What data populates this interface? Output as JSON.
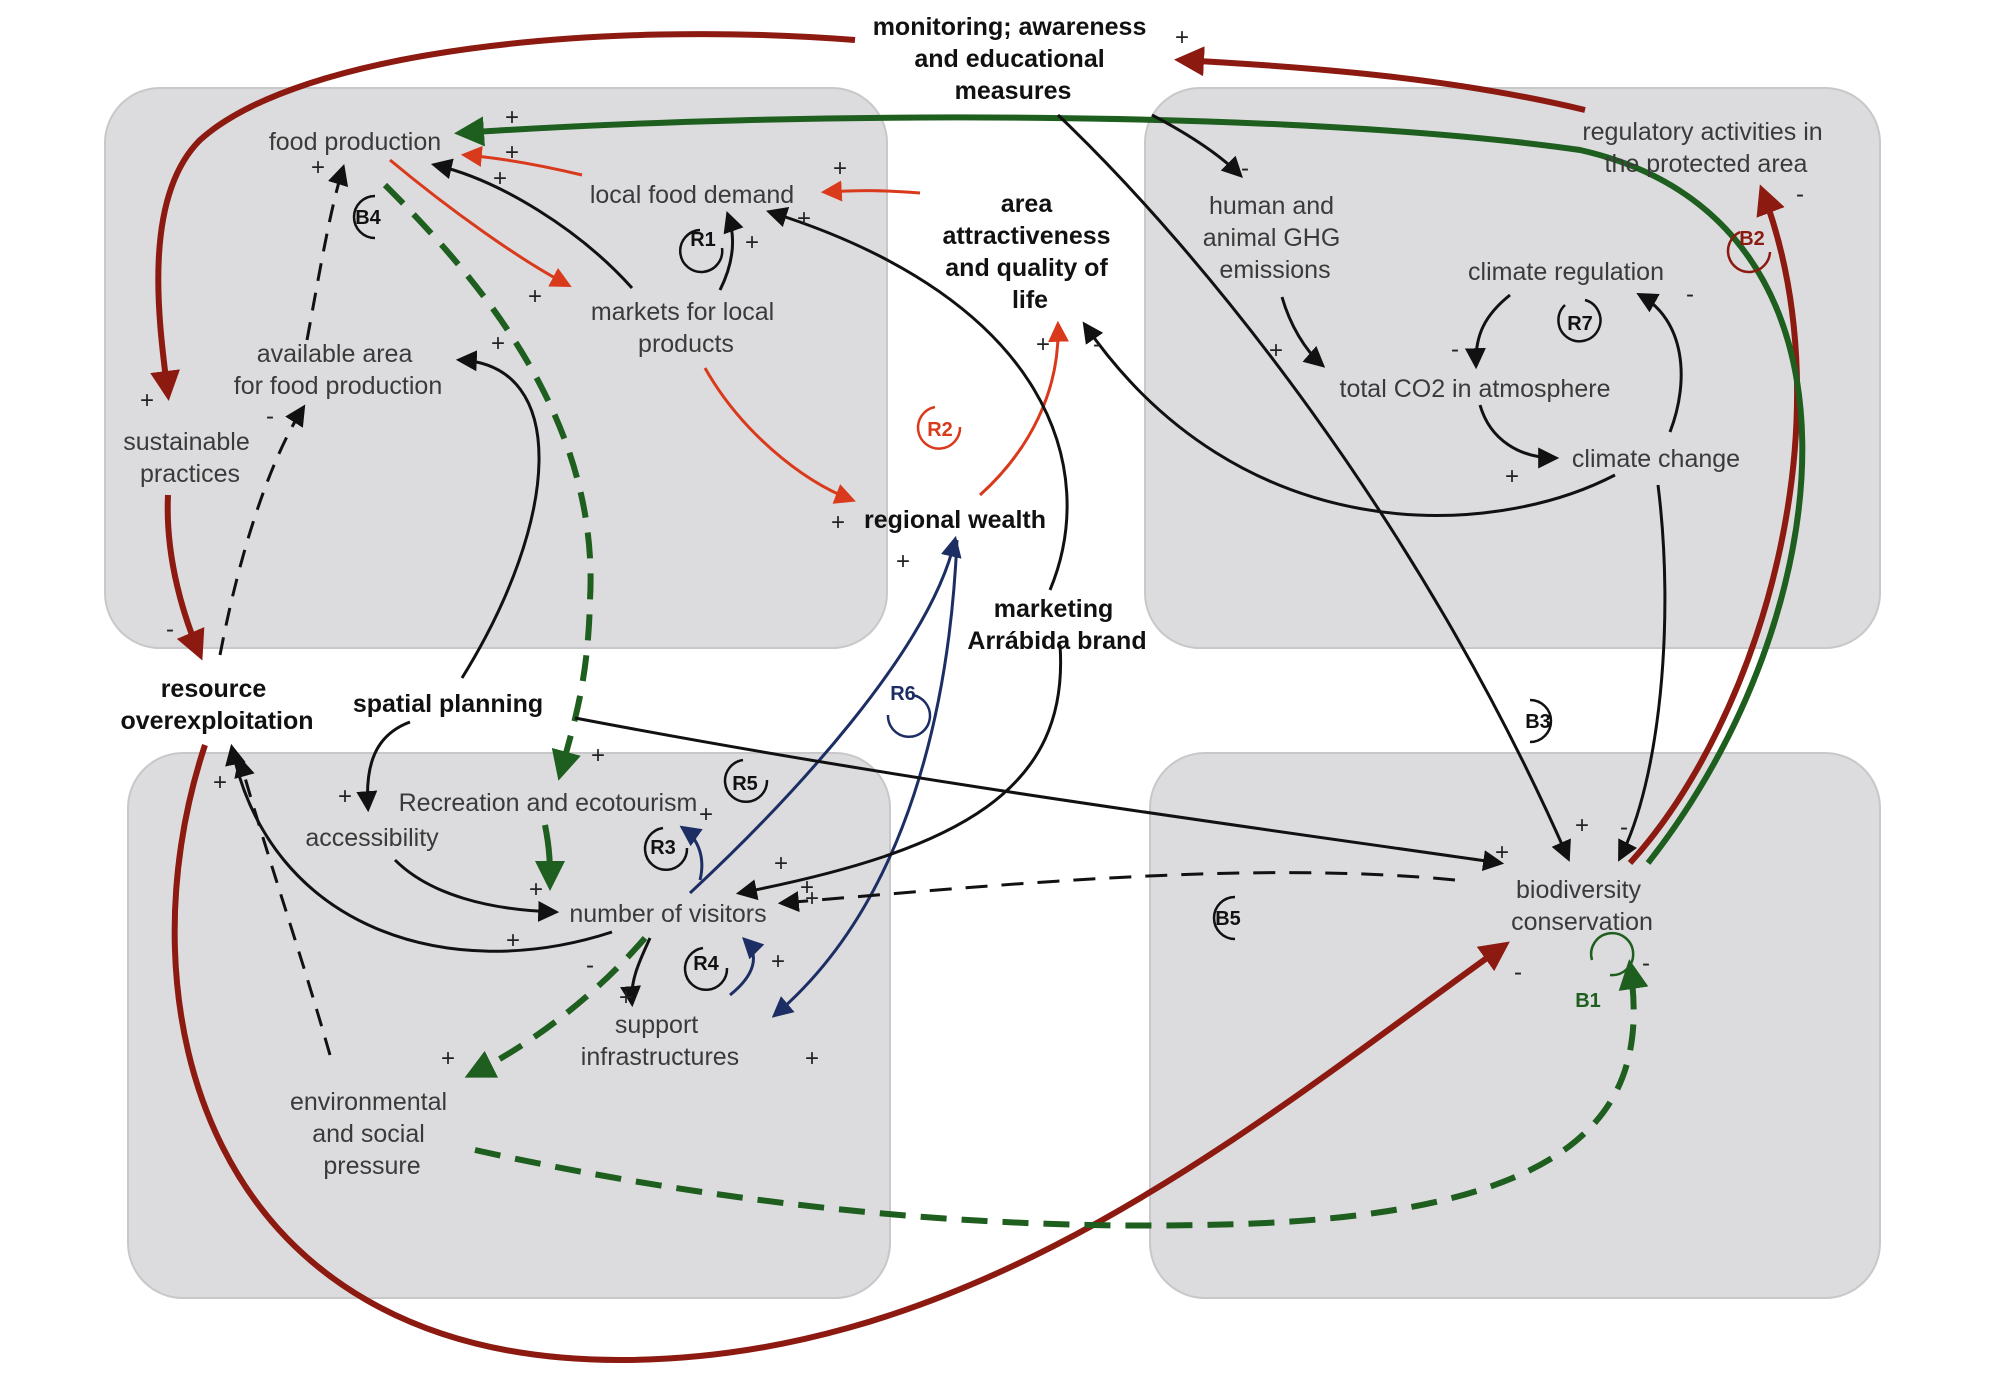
{
  "colors": {
    "black": "#111111",
    "red": "#d93a1c",
    "dark_red": "#8c1a10",
    "green": "#1e5e1e",
    "navy": "#1c2e63",
    "panel": "#dcdcde"
  },
  "nodes": {
    "monitoring": [
      "monitoring; awareness",
      "and educational",
      "measures"
    ],
    "regulatory": [
      "regulatory activities in",
      "the protected area"
    ],
    "food_production": [
      "food production"
    ],
    "local_food_demand": [
      "local food demand"
    ],
    "markets_local": [
      "markets for local",
      "products"
    ],
    "available_area": [
      "available area",
      "for food production"
    ],
    "sustainable_practices": [
      "sustainable",
      "practices"
    ],
    "area_attractiveness": [
      "area",
      "attractiveness",
      "and quality of",
      "life"
    ],
    "regional_wealth": [
      "regional wealth"
    ],
    "marketing": [
      "marketing",
      "Arrábida brand"
    ],
    "ghg": [
      "human and",
      "animal GHG",
      "emissions"
    ],
    "climate_regulation": [
      "climate regulation"
    ],
    "total_co2": [
      "total CO2 in atmosphere"
    ],
    "climate_change": [
      "climate change"
    ],
    "resource_overexploitation": [
      "resource",
      "overexploitation"
    ],
    "spatial_planning": [
      "spatial planning"
    ],
    "recreation": [
      "Recreation and ecotourism"
    ],
    "accessibility": [
      "accessibility"
    ],
    "visitors": [
      "number of visitors"
    ],
    "support_infra": [
      "support",
      "infrastructures"
    ],
    "env_social_pressure": [
      "environmental",
      "and social",
      "pressure"
    ],
    "biodiversity": [
      "biodiversity",
      "conservation"
    ]
  },
  "loops": {
    "B1": "B1",
    "B2": "B2",
    "B3": "B3",
    "B4": "B4",
    "B5": "B5",
    "R1": "R1",
    "R2": "R2",
    "R3": "R3",
    "R4": "R4",
    "R5": "R5",
    "R6": "R6",
    "R7": "R7"
  },
  "signs": {
    "plus": "+",
    "minus": "-"
  }
}
